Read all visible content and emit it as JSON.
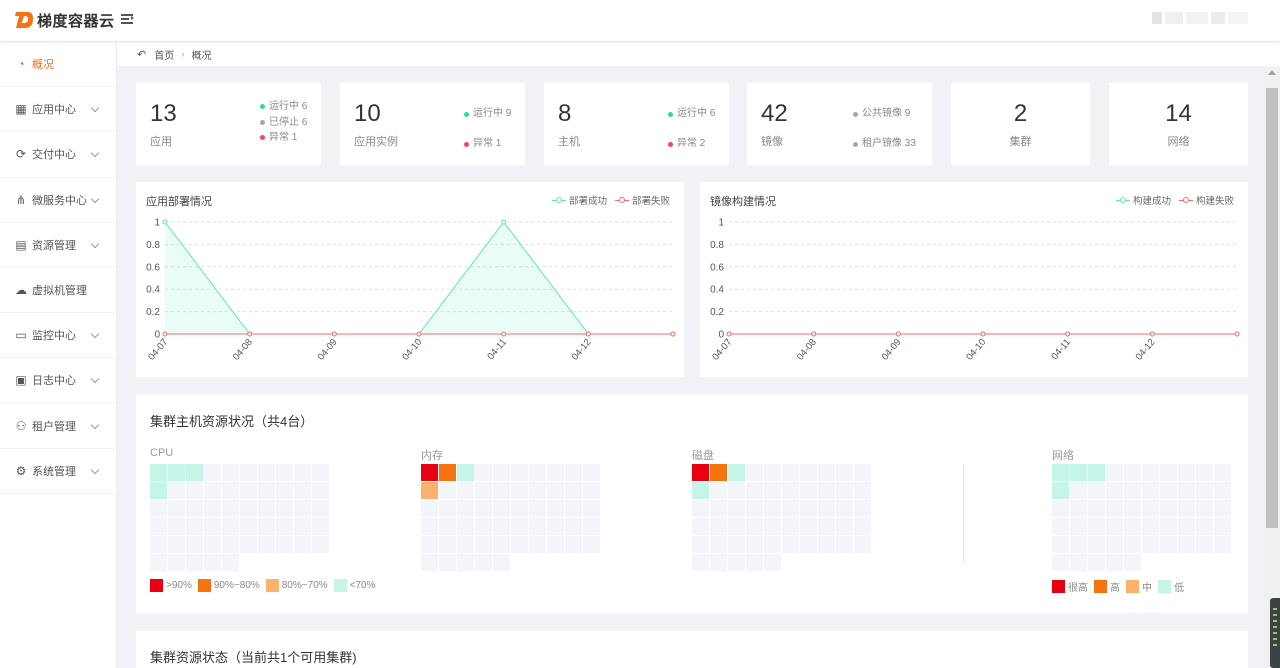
{
  "app": {
    "title": "梯度容器云"
  },
  "breadcrumb": {
    "home": "首页",
    "current": "概况"
  },
  "sidebar": {
    "items": [
      {
        "label": "概况",
        "icon": "dashboard-icon",
        "active": true,
        "expandable": false
      },
      {
        "label": "应用中心",
        "icon": "grid-icon",
        "expandable": true
      },
      {
        "label": "交付中心",
        "icon": "delivery-icon",
        "expandable": true
      },
      {
        "label": "微服务中心",
        "icon": "microservice-icon",
        "expandable": true
      },
      {
        "label": "资源管理",
        "icon": "folder-icon",
        "expandable": true
      },
      {
        "label": "虚拟机管理",
        "icon": "cloud-icon",
        "expandable": false
      },
      {
        "label": "监控中心",
        "icon": "monitor-icon",
        "expandable": true
      },
      {
        "label": "日志中心",
        "icon": "calendar-icon",
        "expandable": true
      },
      {
        "label": "租户管理",
        "icon": "user-icon",
        "expandable": true
      },
      {
        "label": "系统管理",
        "icon": "gear-icon",
        "expandable": true
      }
    ]
  },
  "stats": {
    "apps": {
      "value": "13",
      "label": "应用",
      "legend": [
        {
          "text": "运行中 6",
          "color": "#2ed8a8"
        },
        {
          "text": "已停止 6",
          "color": "#a0a8b8"
        },
        {
          "text": "异常 1",
          "color": "#f5475a"
        }
      ]
    },
    "instances": {
      "value": "10",
      "label": "应用实例",
      "legend": [
        {
          "text": "运行中 9",
          "color": "#2ed8a8"
        },
        {
          "text": "异常 1",
          "color": "#f5475a"
        }
      ]
    },
    "hosts": {
      "value": "8",
      "label": "主机",
      "legend": [
        {
          "text": "运行中 6",
          "color": "#2ed8a8"
        },
        {
          "text": "异常 2",
          "color": "#f5475a"
        }
      ]
    },
    "images": {
      "value": "42",
      "label": "镜像",
      "legend": [
        {
          "text": "公共镜像 9",
          "color": "#a0a8b8"
        },
        {
          "text": "租户镜像 33",
          "color": "#a0a8b8"
        }
      ]
    },
    "clusters": {
      "value": "2",
      "label": "集群"
    },
    "networks": {
      "value": "14",
      "label": "网络"
    }
  },
  "chart_data": [
    {
      "type": "area",
      "title": "应用部署情况",
      "x": [
        "04-07",
        "04-08",
        "04-09",
        "04-10",
        "04-11",
        "04-12",
        ""
      ],
      "series": [
        {
          "name": "部署成功",
          "color": "#5ce6bd",
          "values": [
            1,
            0,
            0,
            0,
            1,
            0,
            0
          ]
        },
        {
          "name": "部署失败",
          "color": "#f56c6c",
          "values": [
            0,
            0,
            0,
            0,
            0,
            0,
            0
          ]
        }
      ],
      "yticks": [
        "0",
        "0.2",
        "0.4",
        "0.6",
        "0.8",
        "1"
      ],
      "ylim": [
        0,
        1
      ],
      "grid": true,
      "legend": "top-right"
    },
    {
      "type": "line",
      "title": "镜像构建情况",
      "x": [
        "04-07",
        "04-08",
        "04-09",
        "04-10",
        "04-11",
        "04-12",
        ""
      ],
      "series": [
        {
          "name": "构建成功",
          "color": "#5ce6bd",
          "values": [
            0,
            0,
            0,
            0,
            0,
            0,
            0
          ]
        },
        {
          "name": "构建失败",
          "color": "#f56c6c",
          "values": [
            0,
            0,
            0,
            0,
            0,
            0,
            0
          ]
        }
      ],
      "yticks": [
        "0",
        "0.2",
        "0.4",
        "0.6",
        "0.8",
        "1"
      ],
      "ylim": [
        0,
        1
      ],
      "grid": true,
      "legend": "top-right"
    }
  ],
  "resources": {
    "title": "集群主机资源状况（共4台）",
    "grids": [
      {
        "label": "CPU",
        "cells": [
          "#c4f5e6",
          "#c4f5e6",
          "#c4f5e6",
          "",
          "",
          "",
          "",
          "",
          "",
          "",
          "#c4f5e6"
        ]
      },
      {
        "label": "内存",
        "cells": [
          "#e60012",
          "#f5740f",
          "#c4f5e6",
          "",
          "",
          "",
          "",
          "",
          "",
          "",
          "#fbb26d"
        ]
      },
      {
        "label": "磁盘",
        "cells": [
          "#e60012",
          "#f5740f",
          "#c4f5e6",
          "",
          "",
          "",
          "",
          "",
          "",
          "",
          "#c4f5e6"
        ]
      },
      {
        "label": "网络",
        "cells": [
          "#c4f5e6",
          "#c4f5e6",
          "#c4f5e6",
          "",
          "",
          "",
          "",
          "",
          "",
          "",
          "#c4f5e6"
        ]
      }
    ],
    "usage_legend": [
      {
        "text": ">90%",
        "color": "#e60012"
      },
      {
        "text": "90%~80%",
        "color": "#f5740f"
      },
      {
        "text": "80%~70%",
        "color": "#fbb26d"
      },
      {
        "text": "<70%",
        "color": "#c4f5e6"
      }
    ],
    "network_legend": [
      {
        "text": "很高",
        "color": "#e60012"
      },
      {
        "text": "高",
        "color": "#f5740f"
      },
      {
        "text": "中",
        "color": "#fbb26d"
      },
      {
        "text": "低",
        "color": "#c4f5e6"
      }
    ]
  },
  "cluster_status": {
    "title": "集群资源状态（当前共1个可用集群)"
  }
}
